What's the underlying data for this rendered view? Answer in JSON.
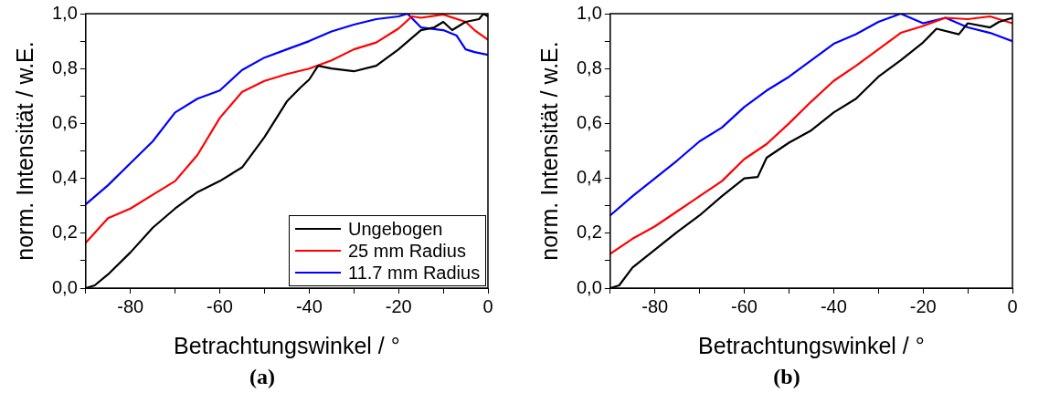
{
  "chart_data": [
    {
      "type": "line",
      "xlabel": "Betrachtungswinkel / °",
      "ylabel": "norm. Intensität / w.E.",
      "annotations": [
        "(a)"
      ],
      "legend": "bottom right",
      "grid": false,
      "marker": "none",
      "line_style": "solid",
      "xlim": [
        -90,
        0
      ],
      "ylim": [
        0,
        1
      ],
      "xticks": [
        {
          "value": -90,
          "label": null
        },
        -80,
        {
          "value": -70,
          "label": null
        },
        -60,
        {
          "value": -50,
          "label": null
        },
        -40,
        {
          "value": -30,
          "label": null
        },
        -20,
        {
          "value": -10,
          "label": null
        },
        0
      ],
      "yticks": [
        {
          "value": 0,
          "label": "0,0"
        },
        {
          "value": 0.1,
          "label": null
        },
        {
          "value": 0.2,
          "label": "0,2"
        },
        {
          "value": 0.3,
          "label": null
        },
        {
          "value": 0.4,
          "label": "0,4"
        },
        {
          "value": 0.5,
          "label": null
        },
        {
          "value": 0.6,
          "label": "0,6"
        },
        {
          "value": 0.7,
          "label": null
        },
        {
          "value": 0.8,
          "label": "0,8"
        },
        {
          "value": 0.9,
          "label": null
        },
        {
          "value": 1,
          "label": "1,0"
        }
      ],
      "series": [
        {
          "name": "Ungebogen",
          "color": "#000000",
          "x": [
            -90,
            -88,
            -85,
            -80,
            -75,
            -70,
            -65,
            -60,
            -55,
            -50,
            -45,
            -42,
            -40,
            -38,
            -35,
            -30,
            -25,
            -20,
            -15,
            -12,
            -10,
            -8,
            -5,
            -2,
            -1,
            0
          ],
          "values": [
            0,
            0.01,
            0.05,
            0.13,
            0.22,
            0.29,
            0.35,
            0.39,
            0.44,
            0.55,
            0.68,
            0.73,
            0.76,
            0.81,
            0.8,
            0.79,
            0.81,
            0.87,
            0.94,
            0.95,
            0.97,
            0.94,
            0.97,
            0.98,
            1,
            0.99
          ]
        },
        {
          "name": "25 mm Radius",
          "color": "#ff0000",
          "x": [
            -90,
            -85,
            -80,
            -75,
            -70,
            -65,
            -60,
            -55,
            -50,
            -45,
            -40,
            -35,
            -30,
            -25,
            -20,
            -17,
            -15,
            -10,
            -5,
            -3,
            0
          ],
          "values": [
            0.165,
            0.255,
            0.29,
            0.34,
            0.39,
            0.485,
            0.62,
            0.715,
            0.755,
            0.78,
            0.8,
            0.83,
            0.87,
            0.895,
            0.946,
            0.99,
            0.985,
            0.997,
            0.97,
            0.94,
            0.905
          ]
        },
        {
          "name": "11.7 mm Radius",
          "color": "#0000ff",
          "x": [
            -90,
            -85,
            -80,
            -75,
            -70,
            -65,
            -60,
            -55,
            -50,
            -45,
            -40,
            -35,
            -30,
            -25,
            -20,
            -18,
            -15,
            -10,
            -7,
            -5,
            -3,
            0
          ],
          "values": [
            0.305,
            0.375,
            0.455,
            0.535,
            0.64,
            0.69,
            0.72,
            0.795,
            0.84,
            0.87,
            0.9,
            0.935,
            0.96,
            0.98,
            0.99,
            1,
            0.95,
            0.94,
            0.92,
            0.87,
            0.86,
            0.85
          ]
        }
      ]
    },
    {
      "type": "line",
      "xlabel": "Betrachtungswinkel / °",
      "ylabel": "norm. Intensität / w.E.",
      "annotations": [
        "(b)"
      ],
      "grid": false,
      "marker": "none",
      "line_style": "solid",
      "xlim": [
        -90,
        0
      ],
      "ylim": [
        0,
        1
      ],
      "xticks": [
        {
          "value": -90,
          "label": null
        },
        -80,
        {
          "value": -70,
          "label": null
        },
        -60,
        {
          "value": -50,
          "label": null
        },
        -40,
        {
          "value": -30,
          "label": null
        },
        -20,
        {
          "value": -10,
          "label": null
        },
        0
      ],
      "yticks": [
        {
          "value": 0,
          "label": "0,0"
        },
        {
          "value": 0.1,
          "label": null
        },
        {
          "value": 0.2,
          "label": "0,2"
        },
        {
          "value": 0.3,
          "label": null
        },
        {
          "value": 0.4,
          "label": "0,4"
        },
        {
          "value": 0.5,
          "label": null
        },
        {
          "value": 0.6,
          "label": "0,6"
        },
        {
          "value": 0.7,
          "label": null
        },
        {
          "value": 0.8,
          "label": "0,8"
        },
        {
          "value": 0.9,
          "label": null
        },
        {
          "value": 1,
          "label": "1,0"
        }
      ],
      "series": [
        {
          "color": "#000000",
          "x": [
            -90,
            -88,
            -85,
            -80,
            -75,
            -70,
            -65,
            -60,
            -57,
            -55,
            -50,
            -45,
            -40,
            -35,
            -30,
            -25,
            -20,
            -17,
            -12,
            -10,
            -5,
            -3,
            0
          ],
          "values": [
            0,
            0.01,
            0.075,
            0.14,
            0.205,
            0.265,
            0.335,
            0.4,
            0.405,
            0.475,
            0.53,
            0.575,
            0.64,
            0.69,
            0.77,
            0.83,
            0.895,
            0.945,
            0.925,
            0.965,
            0.95,
            0.97,
            0.985
          ]
        },
        {
          "color": "#ff0000",
          "x": [
            -90,
            -85,
            -80,
            -75,
            -70,
            -65,
            -60,
            -55,
            -50,
            -45,
            -40,
            -35,
            -30,
            -25,
            -20,
            -15,
            -10,
            -5,
            0
          ],
          "values": [
            0.125,
            0.18,
            0.225,
            0.28,
            0.335,
            0.39,
            0.47,
            0.525,
            0.6,
            0.68,
            0.755,
            0.81,
            0.87,
            0.93,
            0.955,
            0.985,
            0.98,
            0.99,
            0.965
          ]
        },
        {
          "color": "#0000ff",
          "x": [
            -90,
            -85,
            -80,
            -75,
            -70,
            -65,
            -60,
            -55,
            -50,
            -45,
            -40,
            -35,
            -30,
            -25,
            -20,
            -15,
            -10,
            -5,
            0
          ],
          "values": [
            0.265,
            0.335,
            0.4,
            0.465,
            0.535,
            0.585,
            0.66,
            0.72,
            0.77,
            0.83,
            0.89,
            0.925,
            0.97,
            1,
            0.965,
            0.985,
            0.95,
            0.93,
            0.9
          ]
        }
      ]
    }
  ]
}
